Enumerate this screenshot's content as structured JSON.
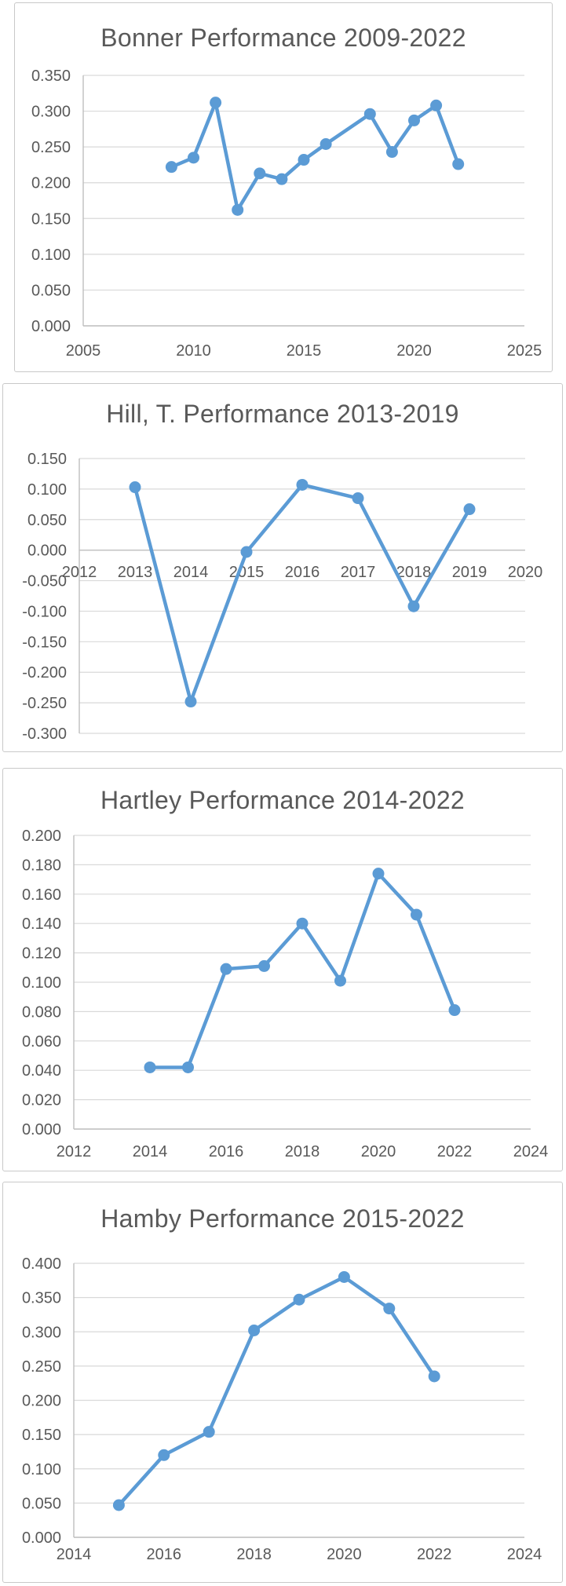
{
  "style": {
    "series_color": "#5B9BD5",
    "title_color": "#595959",
    "label_color": "#595959",
    "gridline_color": "#D9D9D9",
    "axis_color": "#BFBFBF",
    "card_border_color": "#C9C9C9",
    "background": "#FFFFFF"
  },
  "chart_data": [
    {
      "type": "line",
      "title": "Bonner Performance 2009-2022",
      "points": [
        {
          "x": 2009,
          "y": 0.222
        },
        {
          "x": 2010,
          "y": 0.235
        },
        {
          "x": 2011,
          "y": 0.312
        },
        {
          "x": 2012,
          "y": 0.162
        },
        {
          "x": 2013,
          "y": 0.213
        },
        {
          "x": 2014,
          "y": 0.205
        },
        {
          "x": 2015,
          "y": 0.232
        },
        {
          "x": 2016,
          "y": 0.254
        },
        {
          "x": 2018,
          "y": 0.296
        },
        {
          "x": 2019,
          "y": 0.243
        },
        {
          "x": 2020,
          "y": 0.287
        },
        {
          "x": 2021,
          "y": 0.308
        },
        {
          "x": 2022,
          "y": 0.226
        }
      ],
      "note": "no marker for 2017; line connects 2016 to 2018 directly",
      "xlim": [
        2005,
        2025
      ],
      "xtick_labels": [
        "2005",
        "2010",
        "2015",
        "2020",
        "2025"
      ],
      "ylim": [
        0,
        0.35
      ],
      "ytick_labels": [
        "0.350",
        "0.300",
        "0.250",
        "0.200",
        "0.150",
        "0.100",
        "0.050",
        "0.000"
      ],
      "grid": true,
      "legend": false,
      "marker": "circle"
    },
    {
      "type": "line",
      "title": "Hill, T. Performance 2013-2019",
      "points": [
        {
          "x": 2013,
          "y": 0.103
        },
        {
          "x": 2014,
          "y": -0.248
        },
        {
          "x": 2015,
          "y": -0.003
        },
        {
          "x": 2016,
          "y": 0.107
        },
        {
          "x": 2017,
          "y": 0.085
        },
        {
          "x": 2018,
          "y": -0.092
        },
        {
          "x": 2019,
          "y": 0.067
        }
      ],
      "note": "x-axis category labels sit at the zero axis inside the plot area",
      "xlim": [
        2012,
        2020
      ],
      "xtick_labels": [
        "2012",
        "2013",
        "2014",
        "2015",
        "2016",
        "2017",
        "2018",
        "2019",
        "2020"
      ],
      "ylim": [
        -0.3,
        0.15
      ],
      "ytick_labels": [
        "0.150",
        "0.100",
        "0.050",
        "0.000",
        "-0.050",
        "-0.100",
        "-0.150",
        "-0.200",
        "-0.250",
        "-0.300"
      ],
      "grid": true,
      "legend": false,
      "marker": "circle"
    },
    {
      "type": "line",
      "title": "Hartley Performance 2014-2022",
      "points": [
        {
          "x": 2014,
          "y": 0.042
        },
        {
          "x": 2015,
          "y": 0.042
        },
        {
          "x": 2016,
          "y": 0.109
        },
        {
          "x": 2017,
          "y": 0.111
        },
        {
          "x": 2018,
          "y": 0.14
        },
        {
          "x": 2019,
          "y": 0.101
        },
        {
          "x": 2020,
          "y": 0.174
        },
        {
          "x": 2021,
          "y": 0.146
        },
        {
          "x": 2022,
          "y": 0.081
        }
      ],
      "xlim": [
        2012,
        2024
      ],
      "xtick_labels": [
        "2012",
        "2014",
        "2016",
        "2018",
        "2020",
        "2022",
        "2024"
      ],
      "ylim": [
        0,
        0.2
      ],
      "ytick_labels": [
        "0.200",
        "0.180",
        "0.160",
        "0.140",
        "0.120",
        "0.100",
        "0.080",
        "0.060",
        "0.040",
        "0.020",
        "0.000"
      ],
      "grid": true,
      "legend": false,
      "marker": "circle"
    },
    {
      "type": "line",
      "title": "Hamby Performance 2015-2022",
      "points": [
        {
          "x": 2015,
          "y": 0.047
        },
        {
          "x": 2016,
          "y": 0.12
        },
        {
          "x": 2017,
          "y": 0.154
        },
        {
          "x": 2018,
          "y": 0.302
        },
        {
          "x": 2019,
          "y": 0.347
        },
        {
          "x": 2020,
          "y": 0.38
        },
        {
          "x": 2021,
          "y": 0.334
        },
        {
          "x": 2022,
          "y": 0.235
        }
      ],
      "xlim": [
        2014,
        2024
      ],
      "xtick_labels": [
        "2014",
        "2016",
        "2018",
        "2020",
        "2022",
        "2024"
      ],
      "ylim": [
        0,
        0.4
      ],
      "ytick_labels": [
        "0.400",
        "0.350",
        "0.300",
        "0.250",
        "0.200",
        "0.150",
        "0.100",
        "0.050",
        "0.000"
      ],
      "grid": true,
      "legend": false,
      "marker": "circle"
    }
  ]
}
